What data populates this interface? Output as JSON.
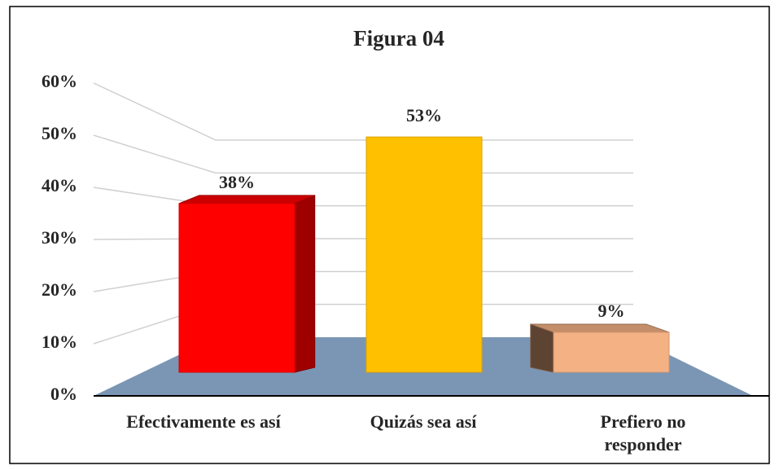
{
  "chart_data": {
    "type": "bar3d",
    "title": "Figura 04",
    "categories": [
      "Efectivamente es así",
      "Quizás sea así",
      "Prefiero no responder"
    ],
    "values": [
      38,
      53,
      9
    ],
    "value_labels": [
      "38%",
      "53%",
      "9%"
    ],
    "colors": [
      "#ff0000",
      "#ffc000",
      "#f4b183"
    ],
    "ylim": [
      0,
      60
    ],
    "yticks": [
      {
        "value": 0,
        "label": "0%"
      },
      {
        "value": 10,
        "label": "10%"
      },
      {
        "value": 20,
        "label": "20%"
      },
      {
        "value": 30,
        "label": "30%"
      },
      {
        "value": 40,
        "label": "40%"
      },
      {
        "value": 50,
        "label": "50%"
      },
      {
        "value": 60,
        "label": "60%"
      }
    ],
    "grid": true,
    "floor_color": "#7a96b4"
  }
}
